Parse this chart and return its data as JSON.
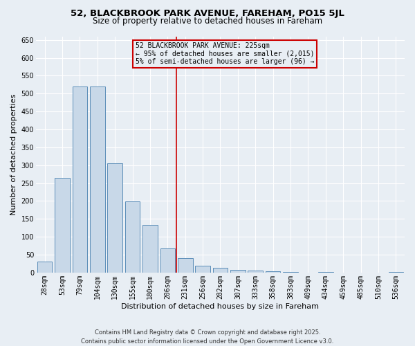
{
  "title_line1": "52, BLACKBROOK PARK AVENUE, FAREHAM, PO15 5JL",
  "title_line2": "Size of property relative to detached houses in Fareham",
  "xlabel": "Distribution of detached houses by size in Fareham",
  "ylabel": "Number of detached properties",
  "categories": [
    "28sqm",
    "53sqm",
    "79sqm",
    "104sqm",
    "130sqm",
    "155sqm",
    "180sqm",
    "206sqm",
    "231sqm",
    "256sqm",
    "282sqm",
    "307sqm",
    "333sqm",
    "358sqm",
    "383sqm",
    "409sqm",
    "434sqm",
    "459sqm",
    "485sqm",
    "510sqm",
    "536sqm"
  ],
  "values": [
    30,
    265,
    520,
    520,
    305,
    198,
    133,
    67,
    40,
    20,
    14,
    8,
    6,
    4,
    2,
    0,
    2,
    0,
    0,
    0,
    2
  ],
  "bar_color": "#c8d8e8",
  "bar_edge_color": "#5b8db8",
  "vline_index": 8,
  "vline_color": "#cc0000",
  "annotation_text": "52 BLACKBROOK PARK AVENUE: 225sqm\n← 95% of detached houses are smaller (2,015)\n5% of semi-detached houses are larger (96) →",
  "annotation_box_color": "#cc0000",
  "ylim": [
    0,
    660
  ],
  "yticks": [
    0,
    50,
    100,
    150,
    200,
    250,
    300,
    350,
    400,
    450,
    500,
    550,
    600,
    650
  ],
  "background_color": "#e8eef4",
  "footer_line1": "Contains HM Land Registry data © Crown copyright and database right 2025.",
  "footer_line2": "Contains public sector information licensed under the Open Government Licence v3.0.",
  "title_fontsize": 9.5,
  "subtitle_fontsize": 8.5,
  "axis_label_fontsize": 8,
  "tick_fontsize": 7,
  "annotation_fontsize": 7,
  "footer_fontsize": 6
}
